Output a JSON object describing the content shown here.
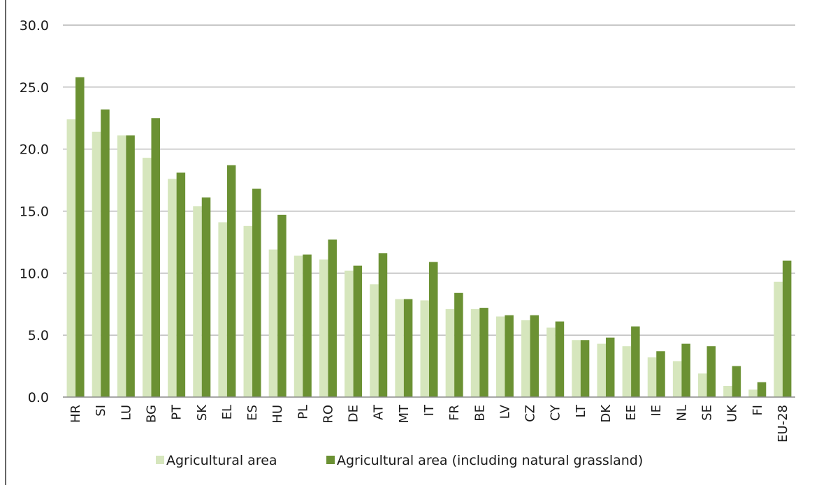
{
  "chart_data": {
    "type": "bar",
    "title": "",
    "xlabel": "",
    "ylabel": "",
    "ylim": [
      0,
      30
    ],
    "yticks": [
      0,
      5,
      10,
      15,
      20,
      25,
      30
    ],
    "grid": true,
    "legend_position": "bottom",
    "categories": [
      "HR",
      "SI",
      "LU",
      "BG",
      "PT",
      "SK",
      "EL",
      "ES",
      "HU",
      "PL",
      "RO",
      "DE",
      "AT",
      "MT",
      "IT",
      "FR",
      "BE",
      "LV",
      "CZ",
      "CY",
      "LT",
      "DK",
      "EE",
      "IE",
      "NL",
      "SE",
      "UK",
      "FI",
      "EU-28"
    ],
    "series": [
      {
        "name": "Agricultural area",
        "color": "#d6e6bd",
        "values": [
          22.4,
          21.4,
          21.1,
          19.3,
          17.6,
          15.4,
          14.1,
          13.8,
          11.9,
          11.4,
          11.1,
          10.2,
          9.1,
          7.9,
          7.8,
          7.1,
          7.1,
          6.5,
          6.2,
          5.6,
          4.6,
          4.3,
          4.1,
          3.2,
          2.9,
          1.9,
          0.9,
          0.6,
          9.3
        ]
      },
      {
        "name": "Agricultural area (including natural grassland)",
        "color": "#6b9133",
        "values": [
          25.8,
          23.2,
          21.1,
          22.5,
          18.1,
          16.1,
          18.7,
          16.8,
          14.7,
          11.5,
          12.7,
          10.6,
          11.6,
          7.9,
          10.9,
          8.4,
          7.2,
          6.6,
          6.6,
          6.1,
          4.6,
          4.8,
          5.7,
          3.7,
          4.3,
          4.1,
          2.5,
          1.2,
          11.0
        ]
      }
    ]
  }
}
